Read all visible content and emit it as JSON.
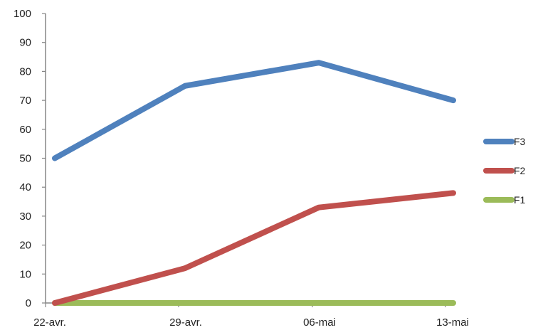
{
  "chart_data": {
    "type": "line",
    "categories": [
      "22-avr.",
      "29-avr.",
      "06-mai",
      "13-mai"
    ],
    "ylim": [
      0,
      100
    ],
    "yticks": [
      0,
      10,
      20,
      30,
      40,
      50,
      60,
      70,
      80,
      90,
      100
    ],
    "grid": false,
    "legend_position": "right",
    "series": [
      {
        "name": "F3",
        "color": "#4F81BD",
        "values": [
          50,
          75,
          83,
          70
        ]
      },
      {
        "name": "F2",
        "color": "#C0504D",
        "values": [
          0,
          12,
          33,
          38
        ]
      },
      {
        "name": "F1",
        "color": "#9BBB59",
        "values": [
          0,
          0,
          0,
          0
        ]
      }
    ]
  }
}
